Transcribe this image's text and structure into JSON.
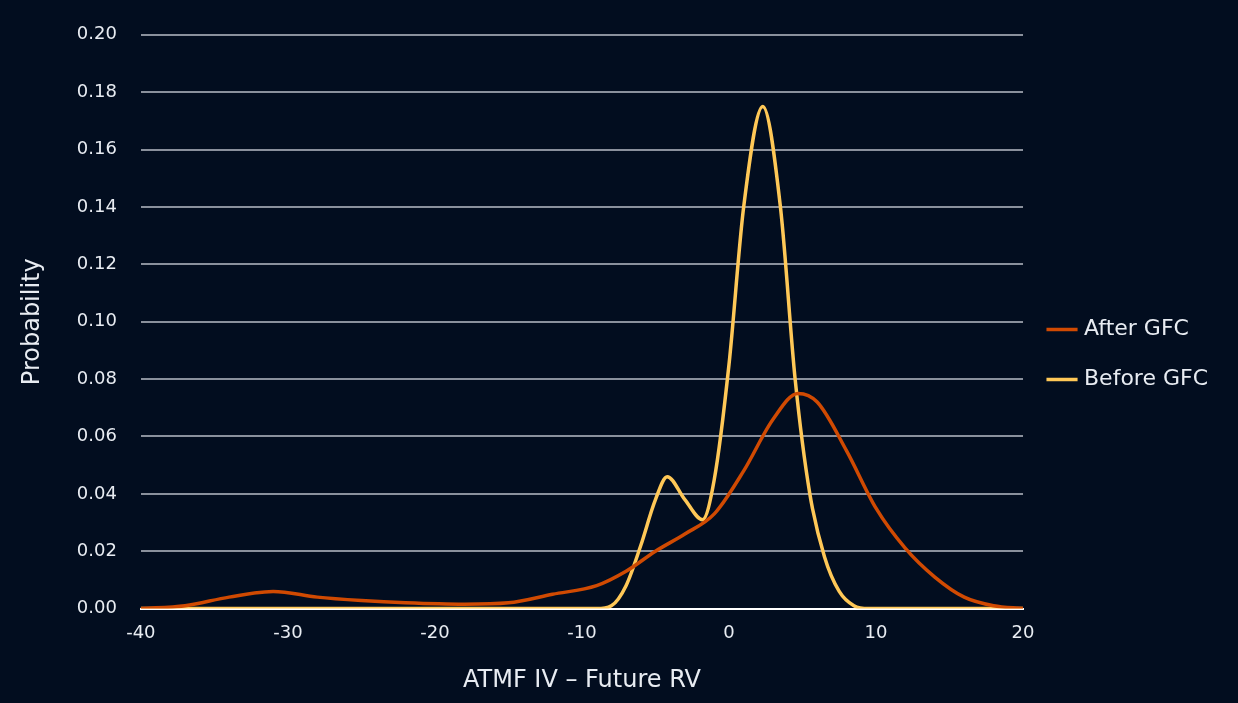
{
  "chart_data": {
    "type": "line",
    "xlabel": "ATMF IV – Future RV",
    "ylabel": "Probability",
    "xlim": [
      -40,
      20
    ],
    "xticks": [
      -40,
      -30,
      -20,
      -10,
      0,
      10,
      20
    ],
    "ylim": [
      0,
      0.2
    ],
    "yticks": [
      {
        "value": 0,
        "label": "0.00"
      },
      {
        "value": 0.02,
        "label": "0.02"
      },
      {
        "value": 0.04,
        "label": "0.04"
      },
      {
        "value": 0.06,
        "label": "0.06"
      },
      {
        "value": 0.08,
        "label": "0.08"
      },
      {
        "value": 0.1,
        "label": "0.10"
      },
      {
        "value": 0.12,
        "label": "0.12"
      },
      {
        "value": 0.14,
        "label": "0.14"
      },
      {
        "value": 0.16,
        "label": "0.16"
      },
      {
        "value": 0.18,
        "label": "0.18"
      },
      {
        "value": 0.2,
        "label": "0.20"
      }
    ],
    "grid": "y",
    "legend": "right",
    "marker": "none",
    "line_style": "solid",
    "series": [
      {
        "name": "After GFC",
        "color": "#d04a02",
        "x": [
          -40,
          -37,
          -34,
          -31,
          -28,
          -25,
          -22,
          -18,
          -15,
          -12,
          -9,
          -7,
          -5,
          -3,
          -1,
          1,
          3,
          4.7,
          6,
          8,
          10,
          12,
          14,
          16,
          18,
          20
        ],
        "values": [
          0,
          0.001,
          0.004,
          0.006,
          0.004,
          0.0028,
          0.002,
          0.0015,
          0.002,
          0.005,
          0.008,
          0.013,
          0.02,
          0.026,
          0.033,
          0.048,
          0.066,
          0.075,
          0.072,
          0.055,
          0.035,
          0.021,
          0.011,
          0.004,
          0.001,
          0
        ]
      },
      {
        "name": "Before GFC",
        "color": "#ffc857",
        "x": [
          -40,
          -9,
          -8,
          -7,
          -6,
          -5,
          -4.2,
          -3,
          -1.8,
          -1,
          0,
          1,
          2.3,
          3.5,
          4.5,
          5.5,
          6.5,
          7.5,
          8.5,
          9.5,
          20
        ],
        "values": [
          0,
          0,
          0.001,
          0.008,
          0.022,
          0.038,
          0.046,
          0.038,
          0.031,
          0.045,
          0.085,
          0.14,
          0.175,
          0.14,
          0.08,
          0.04,
          0.018,
          0.006,
          0.001,
          0,
          0
        ]
      }
    ]
  }
}
